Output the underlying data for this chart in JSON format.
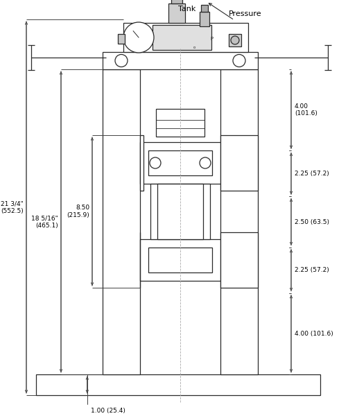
{
  "bg_color": "#ffffff",
  "line_color": "#2a2a2a",
  "dim_color": "#444444",
  "annotations": {
    "tank_label": "Tank",
    "pressure_label": "Pressure",
    "dim_21_3_4": "21 3/4\"\n(552.5)",
    "dim_18_5_16": "18 5/16\"\n(465.1)",
    "dim_8_50": "8.50\n(215.9)",
    "dim_1_00": "1.00 (25.4)",
    "dim_4_00_top": "4.00\n(101.6)",
    "dim_2_25_top": "2.25 (57.2)",
    "dim_2_50": "2.50 (63.5)",
    "dim_2_25_bot": "2.25 (57.2)",
    "dim_4_00_bot": "4.00 (101.6)"
  }
}
